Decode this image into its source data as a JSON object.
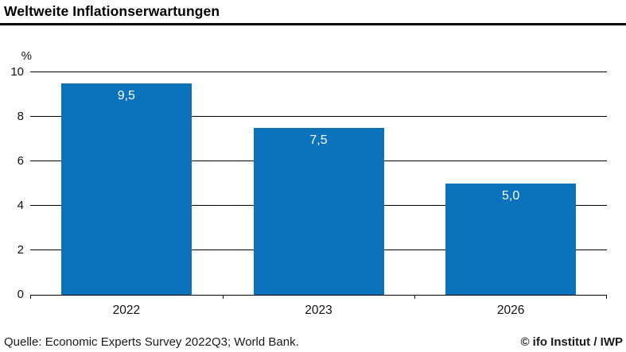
{
  "header": {
    "title": "Weltweite Inflationserwartungen"
  },
  "chart_data": {
    "type": "bar",
    "categories": [
      "2022",
      "2023",
      "2026"
    ],
    "values": [
      9.5,
      7.5,
      5.0
    ],
    "value_labels": [
      "9,5",
      "7,5",
      "5,0"
    ],
    "title": "Weltweite Inflationserwartungen",
    "xlabel": "",
    "ylabel": "%",
    "ylim": [
      0,
      10
    ],
    "yticks": [
      0,
      2,
      4,
      6,
      8,
      10
    ],
    "grid": "horizontal",
    "legend": "none",
    "colors": {
      "bar": "#0a73bc",
      "bar_value_label": "#ffffff",
      "gridline": "#000000",
      "text": "#111111"
    }
  },
  "footer": {
    "source": "Quelle: Economic Experts Survey 2022Q3; World Bank.",
    "copyright": "© ifo Institut / IWP"
  }
}
